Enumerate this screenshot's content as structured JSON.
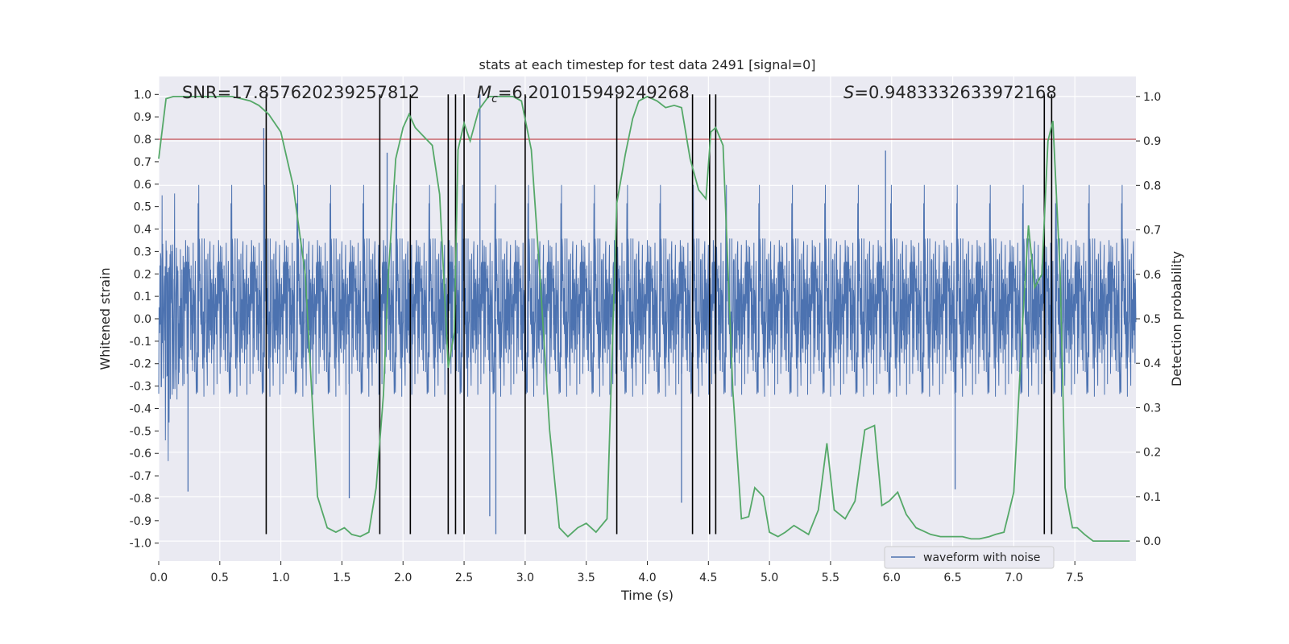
{
  "chart_data": {
    "type": "line",
    "title": "stats at each timestep for test data 2491 [signal=0]",
    "xlabel": "Time (s)",
    "ylabel_left": "Whitened strain",
    "ylabel_right": "Detection probability",
    "xlim": [
      0,
      8.0
    ],
    "ylim_left": [
      -1.08,
      1.08
    ],
    "ylim_right": [
      -0.045,
      1.045
    ],
    "x_ticks": [
      0.0,
      0.5,
      1.0,
      1.5,
      2.0,
      2.5,
      3.0,
      3.5,
      4.0,
      4.5,
      5.0,
      5.5,
      6.0,
      6.5,
      7.0,
      7.5
    ],
    "x_tick_labels": [
      "0.0",
      "0.5",
      "1.0",
      "1.5",
      "2.0",
      "2.5",
      "3.0",
      "3.5",
      "4.0",
      "4.5",
      "5.0",
      "5.5",
      "6.0",
      "6.5",
      "7.0",
      "7.5"
    ],
    "y_left_ticks": [
      1.0,
      0.9,
      0.8,
      0.7,
      0.6,
      0.5,
      0.4,
      0.3,
      0.2,
      0.1,
      0.0,
      -0.1,
      -0.2,
      -0.3,
      -0.4,
      -0.5,
      -0.6,
      -0.7,
      -0.8,
      -0.9,
      -1.0
    ],
    "y_left_tick_labels": [
      "1.0",
      "0.9",
      "0.8",
      "0.7",
      "0.6",
      "0.5",
      "0.4",
      "0.3",
      "0.2",
      "0.1",
      "0.0",
      "-0.1",
      "-0.2",
      "-0.3",
      "-0.4",
      "-0.5",
      "-0.6",
      "-0.7",
      "-0.8",
      "-0.9",
      "-1.0"
    ],
    "y_right_ticks": [
      1.0,
      0.9,
      0.8,
      0.7,
      0.6,
      0.5,
      0.4,
      0.3,
      0.2,
      0.1,
      0.0
    ],
    "y_right_tick_labels": [
      "1.0",
      "0.9",
      "0.8",
      "0.7",
      "0.6",
      "0.5",
      "0.4",
      "0.3",
      "0.2",
      "0.1",
      "0.0"
    ],
    "grid": true,
    "legend_position": "lower-right",
    "annotations": {
      "snr": "SNR=17.857620239257812",
      "mc_prefix": "M",
      "mc_sub": "c",
      "mc_value": "=6.201015949249268",
      "s_prefix": "S",
      "s_value": "=0.9483332633972168"
    },
    "series": [
      {
        "name": "waveform with noise",
        "axis": "left",
        "color": "#4c72b0",
        "kind": "noise waveform",
        "envelope_peaks": [
          {
            "x": 0.24,
            "y": -0.77
          },
          {
            "x": 0.86,
            "y": 0.85
          },
          {
            "x": 1.87,
            "y": 0.74
          },
          {
            "x": 2.63,
            "y": 1.0
          },
          {
            "x": 2.76,
            "y": -0.96
          },
          {
            "x": 2.71,
            "y": -0.88
          },
          {
            "x": 4.28,
            "y": -0.82
          },
          {
            "x": 5.95,
            "y": 0.75
          },
          {
            "x": 6.52,
            "y": -0.76
          },
          {
            "x": 1.56,
            "y": -0.8
          }
        ]
      },
      {
        "name": "",
        "axis": "right",
        "color": "#55a868",
        "x": [
          0.0,
          0.06,
          0.12,
          0.2,
          0.3,
          0.45,
          0.6,
          0.75,
          0.82,
          0.9,
          1.0,
          1.1,
          1.2,
          1.25,
          1.3,
          1.38,
          1.45,
          1.52,
          1.58,
          1.65,
          1.72,
          1.78,
          1.84,
          1.88,
          1.94,
          2.0,
          2.05,
          2.1,
          2.17,
          2.24,
          2.3,
          2.37,
          2.42,
          2.45,
          2.5,
          2.55,
          2.62,
          2.7,
          2.8,
          2.9,
          2.97,
          3.05,
          3.12,
          3.2,
          3.28,
          3.35,
          3.43,
          3.5,
          3.58,
          3.67,
          3.75,
          3.82,
          3.88,
          3.93,
          4.0,
          4.08,
          4.15,
          4.22,
          4.28,
          4.35,
          4.42,
          4.48,
          4.52,
          4.56,
          4.62,
          4.7,
          4.77,
          4.83,
          4.88,
          4.95,
          5.0,
          5.07,
          5.13,
          5.2,
          5.32,
          5.4,
          5.47,
          5.53,
          5.62,
          5.7,
          5.78,
          5.86,
          5.92,
          5.98,
          6.05,
          6.12,
          6.2,
          6.32,
          6.4,
          6.5,
          6.58,
          6.65,
          6.72,
          6.8,
          6.85,
          6.92,
          7.0,
          7.07,
          7.12,
          7.17,
          7.23,
          7.28,
          7.32,
          7.38,
          7.42,
          7.48,
          7.52,
          7.58,
          7.65,
          7.72,
          7.8,
          7.88,
          7.95
        ],
        "values": [
          0.86,
          0.995,
          1.0,
          1.0,
          1.0,
          1.0,
          1.0,
          0.99,
          0.98,
          0.96,
          0.92,
          0.8,
          0.6,
          0.35,
          0.1,
          0.03,
          0.02,
          0.03,
          0.015,
          0.01,
          0.02,
          0.12,
          0.33,
          0.6,
          0.86,
          0.93,
          0.96,
          0.93,
          0.91,
          0.89,
          0.78,
          0.39,
          0.47,
          0.88,
          0.94,
          0.9,
          0.97,
          1.0,
          1.0,
          1.0,
          0.99,
          0.88,
          0.6,
          0.25,
          0.03,
          0.01,
          0.03,
          0.04,
          0.02,
          0.05,
          0.76,
          0.87,
          0.95,
          0.99,
          1.0,
          0.99,
          0.975,
          0.98,
          0.975,
          0.86,
          0.79,
          0.77,
          0.92,
          0.93,
          0.89,
          0.34,
          0.05,
          0.055,
          0.12,
          0.1,
          0.02,
          0.01,
          0.02,
          0.035,
          0.015,
          0.07,
          0.22,
          0.07,
          0.05,
          0.09,
          0.25,
          0.26,
          0.08,
          0.09,
          0.11,
          0.06,
          0.03,
          0.015,
          0.01,
          0.01,
          0.01,
          0.005,
          0.005,
          0.01,
          0.015,
          0.02,
          0.11,
          0.48,
          0.71,
          0.57,
          0.6,
          0.9,
          0.945,
          0.6,
          0.12,
          0.03,
          0.03,
          0.015,
          0.0,
          0.0,
          0.0,
          0.0,
          0.0
        ]
      }
    ],
    "threshold": {
      "axis": "left",
      "y": 0.8,
      "color": "#c44e52"
    },
    "vertical_markers": {
      "color": "#000000",
      "x": [
        0.88,
        1.81,
        2.06,
        2.37,
        2.43,
        2.5,
        3.0,
        3.75,
        4.37,
        4.51,
        4.56,
        7.25,
        7.31
      ],
      "y_range": [
        -0.96,
        1.0
      ]
    }
  }
}
